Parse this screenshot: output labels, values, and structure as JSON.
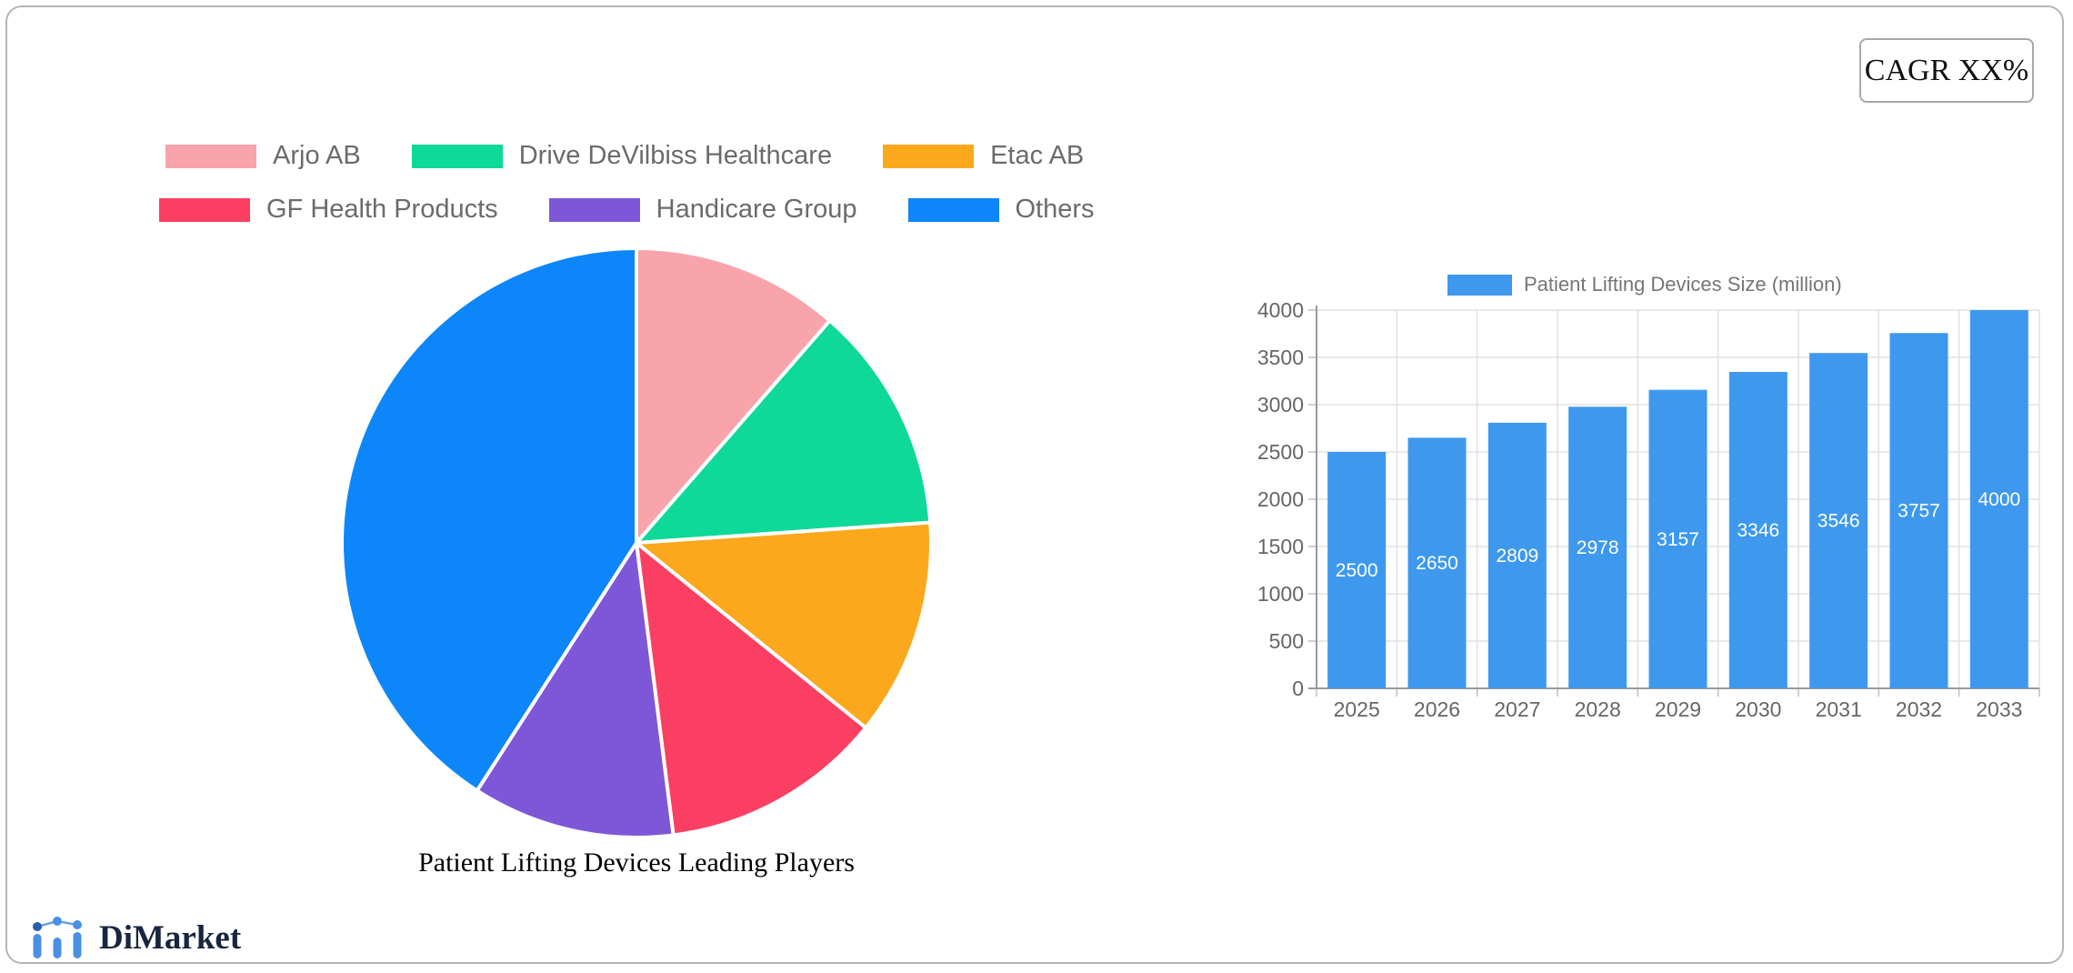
{
  "cagr_label": "CAGR XX%",
  "brand": {
    "name": "DiMarket"
  },
  "chart_data": [
    {
      "type": "pie",
      "title": "Patient Lifting Devices Leading Players",
      "legend_position": "top",
      "legend_rows": [
        [
          "Arjo AB",
          "Drive DeVilbiss Healthcare",
          "Etac AB"
        ],
        [
          "GF Health Products",
          "Handicare Group",
          "Others"
        ]
      ],
      "series": [
        {
          "label": "Arjo AB",
          "value": 11.4,
          "color": "#F9A3AB"
        },
        {
          "label": "Drive DeVilbiss Healthcare",
          "value": 12.5,
          "color": "#0ED998"
        },
        {
          "label": "Etac AB",
          "value": 11.9,
          "color": "#FBA81D"
        },
        {
          "label": "GF Health Products",
          "value": 12.2,
          "color": "#FB3F62"
        },
        {
          "label": "Handicare Group",
          "value": 11.1,
          "color": "#7E57D9"
        },
        {
          "label": "Others",
          "value": 40.9,
          "color": "#0C86F8"
        }
      ]
    },
    {
      "type": "bar",
      "legend": "Patient Lifting Devices Size (million)",
      "categories": [
        "2025",
        "2026",
        "2027",
        "2028",
        "2029",
        "2030",
        "2031",
        "2032",
        "2033"
      ],
      "values": [
        2500,
        2650,
        2809,
        2978,
        3157,
        3346,
        3546,
        3757,
        4000
      ],
      "bar_color": "#3E99EE",
      "value_label_color": "#ffffff",
      "ylim": [
        0,
        4000
      ],
      "ytick_step": 500,
      "yticks": [
        0,
        500,
        1000,
        1500,
        2000,
        2500,
        3000,
        3500,
        4000
      ],
      "grid": true,
      "legend_position": "top"
    }
  ]
}
